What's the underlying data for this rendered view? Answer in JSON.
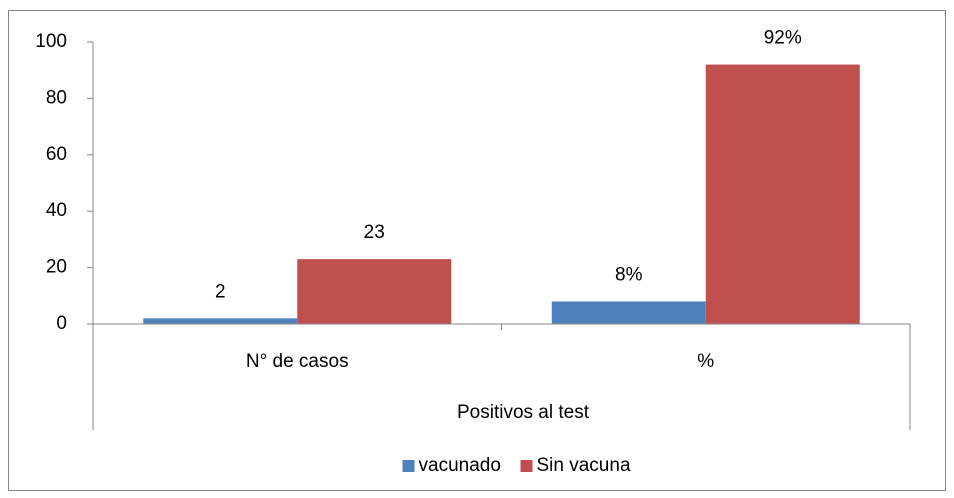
{
  "chart_data": {
    "type": "bar",
    "categories": [
      "N° de casos",
      "%"
    ],
    "x_label": "Positivos al test",
    "series": [
      {
        "name": "vacunado",
        "color": "#4f81bd",
        "values": [
          2,
          8
        ],
        "value_labels": [
          "2",
          "8%"
        ]
      },
      {
        "name": "Sin vacuna",
        "color": "#c0504d",
        "values": [
          23,
          92
        ],
        "value_labels": [
          "23",
          "92%"
        ]
      }
    ],
    "ylim": [
      0,
      100
    ],
    "yticks": [
      0,
      20,
      40,
      60,
      80,
      100
    ],
    "grid": false,
    "legend": "bottom"
  }
}
